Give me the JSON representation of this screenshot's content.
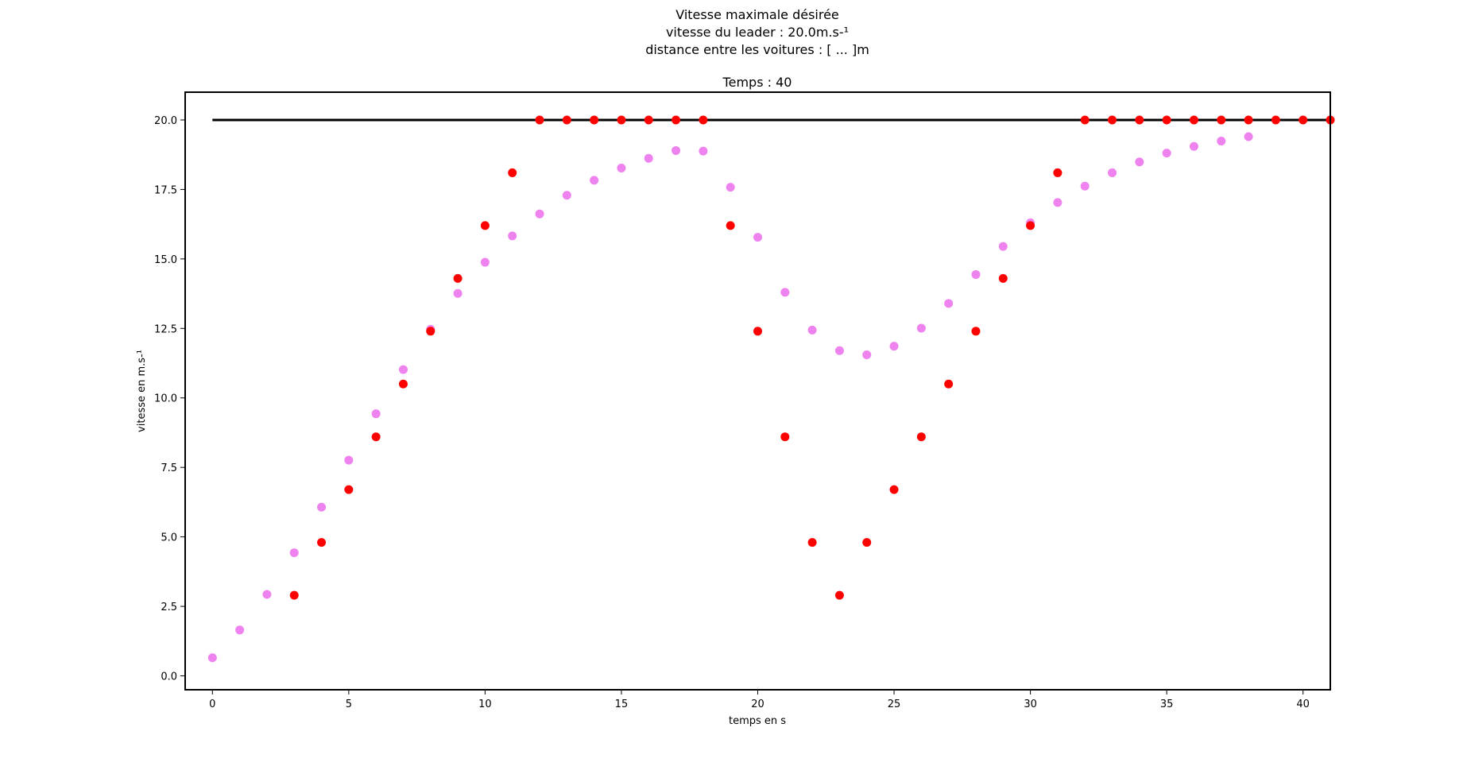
{
  "chart_data": {
    "type": "scatter",
    "title_lines": [
      "Vitesse maximale désirée",
      "vitesse du leader : 20.0m.s-¹",
      "distance entre les voitures : [ ... ]m"
    ],
    "subtitle": "Temps : 40",
    "xlabel": "temps en s",
    "ylabel": "vitesse en m.s-¹",
    "xlim": [
      -1,
      41
    ],
    "ylim": [
      -0.5,
      21
    ],
    "xticks": [
      0,
      5,
      10,
      15,
      20,
      25,
      30,
      35,
      40
    ],
    "yticks": [
      0.0,
      2.5,
      5.0,
      7.5,
      10.0,
      12.5,
      15.0,
      17.5,
      20.0
    ],
    "grid": false,
    "reference_line": {
      "y": 20.0,
      "x_start": 0,
      "x_end": 41,
      "color": "#000000"
    },
    "series": [
      {
        "color": "#ee82ee",
        "x": [
          0,
          1,
          2,
          3,
          4,
          5,
          6,
          7,
          8,
          9,
          10,
          11,
          12,
          13,
          14,
          15,
          16,
          17,
          18,
          19,
          20,
          21,
          22,
          23,
          24,
          25,
          26,
          27,
          28,
          29,
          30,
          31,
          32,
          33,
          34,
          35,
          36,
          37,
          38
        ],
        "y": [
          0.65,
          1.65,
          2.93,
          4.43,
          6.07,
          7.76,
          9.43,
          11.02,
          12.47,
          13.76,
          14.88,
          15.83,
          16.62,
          17.29,
          17.83,
          18.27,
          18.62,
          18.9,
          18.88,
          17.58,
          15.78,
          13.8,
          12.44,
          11.7,
          11.55,
          11.86,
          12.51,
          13.4,
          14.44,
          15.45,
          16.3,
          17.03,
          17.62,
          18.1,
          18.49,
          18.81,
          19.05,
          19.24,
          19.4
        ]
      },
      {
        "color": "#ff0000",
        "x": [
          3,
          4,
          5,
          6,
          7,
          8,
          9,
          10,
          11,
          12,
          13,
          14,
          15,
          16,
          17,
          18,
          19,
          20,
          21,
          22,
          23,
          24,
          25,
          26,
          27,
          28,
          29,
          30,
          31,
          32,
          33,
          34,
          35,
          36,
          37,
          38,
          39,
          40,
          41
        ],
        "y": [
          2.9,
          4.8,
          6.7,
          8.6,
          10.5,
          12.4,
          14.3,
          16.2,
          18.1,
          20,
          20,
          20,
          20,
          20,
          20,
          20,
          16.2,
          12.4,
          8.6,
          4.8,
          2.9,
          4.8,
          6.7,
          8.6,
          10.5,
          12.4,
          14.3,
          16.2,
          18.1,
          20,
          20,
          20,
          20,
          20,
          20,
          20,
          20,
          20,
          20
        ]
      }
    ]
  }
}
